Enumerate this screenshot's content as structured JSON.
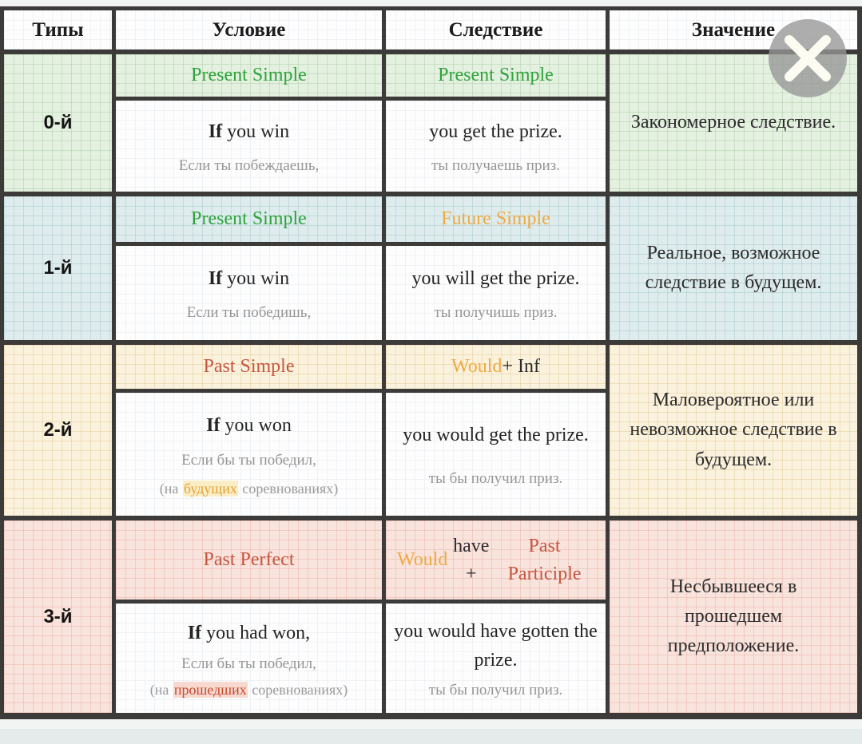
{
  "header": {
    "columns": [
      "Типы",
      "Условие",
      "Следствие",
      "Значение"
    ]
  },
  "colors": {
    "border_dark": "#3d3b39",
    "green_text": "#2fa33c",
    "orange_text": "#eeab43",
    "red_text": "#c75540",
    "gray_text": "#959595",
    "row0_bg": "#e4f0e0",
    "row1_bg": "#dfecee",
    "row2_bg": "#fbf2dd",
    "row3_bg": "#f9e3dd",
    "close_circle": "#969696",
    "close_cross": "#fcfcf2"
  },
  "close_button": {
    "symbol": "✕"
  },
  "rows": [
    {
      "type": "0-й",
      "condition": {
        "label_segments": [
          {
            "text": "Present Simple",
            "color": "#2fa33c"
          }
        ],
        "sentence_segments": [
          {
            "text": "If",
            "bold": true
          },
          {
            "text": " you win"
          }
        ],
        "translation": "Если ты побеждаешь,"
      },
      "consequence": {
        "label_segments": [
          {
            "text": "Present Simple",
            "color": "#2fa33c"
          }
        ],
        "sentence_segments": [
          {
            "text": "you get the prize."
          }
        ],
        "translation": "ты получаешь приз."
      },
      "meaning": "Закономерное следствие."
    },
    {
      "type": "1-й",
      "condition": {
        "label_segments": [
          {
            "text": "Present Simple",
            "color": "#2fa33c"
          }
        ],
        "sentence_segments": [
          {
            "text": "If",
            "bold": true
          },
          {
            "text": " you win"
          }
        ],
        "translation": "Если ты победишь,"
      },
      "consequence": {
        "label_segments": [
          {
            "text": "Future Simple",
            "color": "#eeab43"
          }
        ],
        "sentence_segments": [
          {
            "text": "you will get the prize."
          }
        ],
        "translation": "ты получишь приз."
      },
      "meaning": "Реальное, возможное следствие в будущем."
    },
    {
      "type": "2-й",
      "condition": {
        "label_segments": [
          {
            "text": "Past Simple",
            "color": "#c75540"
          }
        ],
        "sentence_segments": [
          {
            "text": "If",
            "bold": true
          },
          {
            "text": " you won"
          }
        ],
        "translation": "Если бы ты победил,",
        "note_segments": [
          {
            "text": "(на ",
            "color": "#9a9a9a"
          },
          {
            "text": "будущих",
            "color": "#e3a235",
            "bg": "#fbeec7"
          },
          {
            "text": " соревнованиях)",
            "color": "#9a9a9a"
          }
        ]
      },
      "consequence": {
        "label_segments": [
          {
            "text": "Would",
            "color": "#eeab43"
          },
          {
            "text": " + Inf",
            "color": "#2b2b2b"
          }
        ],
        "sentence_segments": [
          {
            "text": "you would get the prize."
          }
        ],
        "translation": "ты бы получил приз."
      },
      "meaning": "Маловероятное или невозможное следствие в будущем."
    },
    {
      "type": "3-й",
      "condition": {
        "label_segments": [
          {
            "text": "Past Perfect",
            "color": "#c75540"
          }
        ],
        "sentence_segments": [
          {
            "text": "If",
            "bold": true
          },
          {
            "text": " you had won,"
          }
        ],
        "translation": "Если бы ты победил,",
        "note_segments": [
          {
            "text": "(на ",
            "color": "#9a9a9a"
          },
          {
            "text": "прошедших",
            "color": "#c64a31",
            "bg": "#f7d9cf"
          },
          {
            "text": " соревнованиях)",
            "color": "#9a9a9a"
          }
        ]
      },
      "consequence": {
        "label_segments": [
          {
            "text": "Would",
            "color": "#eeab43"
          },
          {
            "text": " have + ",
            "color": "#2b2b2b"
          },
          {
            "text": "Past Participle",
            "color": "#c75540"
          }
        ],
        "sentence_segments": [
          {
            "text": "you would have gotten the prize."
          }
        ],
        "translation": "ты бы получил приз."
      },
      "meaning": "Несбывшееся в прошедшем предположение."
    }
  ]
}
